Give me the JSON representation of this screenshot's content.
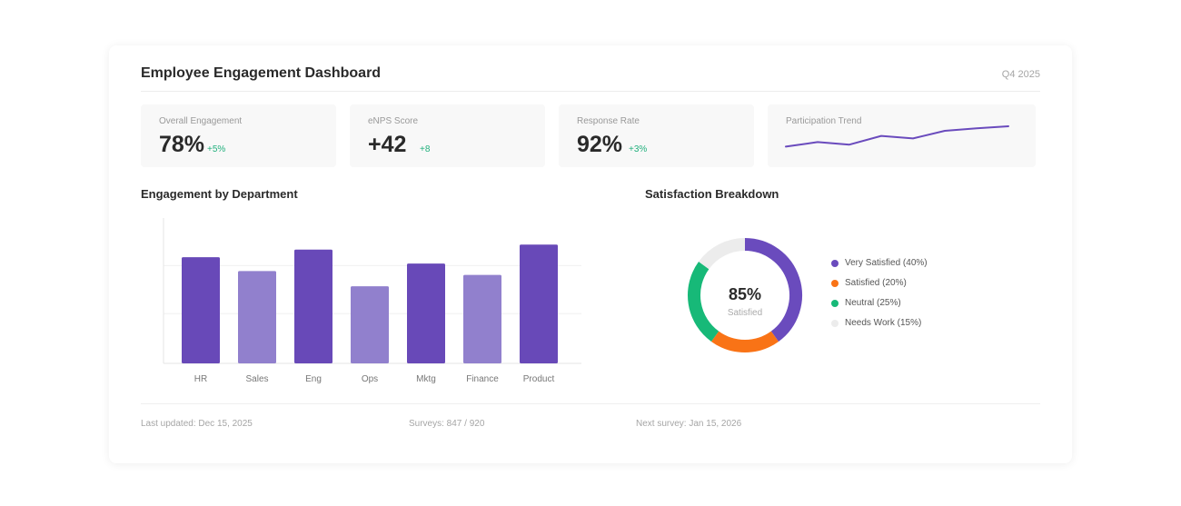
{
  "header": {
    "title": "Employee Engagement Dashboard",
    "period": "Q4 2025"
  },
  "kpis": [
    {
      "label": "Overall Engagement",
      "value": "78%",
      "delta": "+5%"
    },
    {
      "label": "eNPS Score",
      "value": "+42",
      "delta": "+8"
    },
    {
      "label": "Response Rate",
      "value": "92%",
      "delta": "+3%"
    }
  ],
  "trend": {
    "label": "Participation Trend",
    "values": [
      0.2,
      0.38,
      0.28,
      0.62,
      0.52,
      0.82,
      0.92,
      1.0
    ],
    "color": "#6a4bbd"
  },
  "sections": {
    "department_title": "Engagement by Department",
    "satisfaction_title": "Satisfaction Breakdown"
  },
  "chart_data": [
    {
      "type": "bar",
      "title": "Engagement by Department",
      "categories": [
        "HR",
        "Sales",
        "Eng",
        "Ops",
        "Mktg",
        "Finance",
        "Product"
      ],
      "values": [
        84,
        73,
        90,
        61,
        79,
        70,
        94
      ],
      "ylim": [
        0,
        115
      ],
      "grid": true,
      "colors": [
        "#6849b8",
        "#9180cd",
        "#6849b8",
        "#9180cd",
        "#6849b8",
        "#9180cd",
        "#6849b8"
      ]
    },
    {
      "type": "pie",
      "title": "Satisfaction Breakdown",
      "categories": [
        "Very Satisfied (40%)",
        "Satisfied (20%)",
        "Neutral (25%)",
        "Needs Work (15%)"
      ],
      "values": [
        40,
        20,
        25,
        15
      ],
      "colors": [
        "#6a4bbd",
        "#f97316",
        "#17b978",
        "#ececec"
      ],
      "center_value": "85%",
      "center_label": "Satisfied",
      "legend": "right"
    }
  ],
  "footer": {
    "last_updated": "Last updated: Dec 15, 2025",
    "surveys": "Surveys: 847 / 920",
    "next_survey": "Next survey: Jan 15, 2026"
  }
}
